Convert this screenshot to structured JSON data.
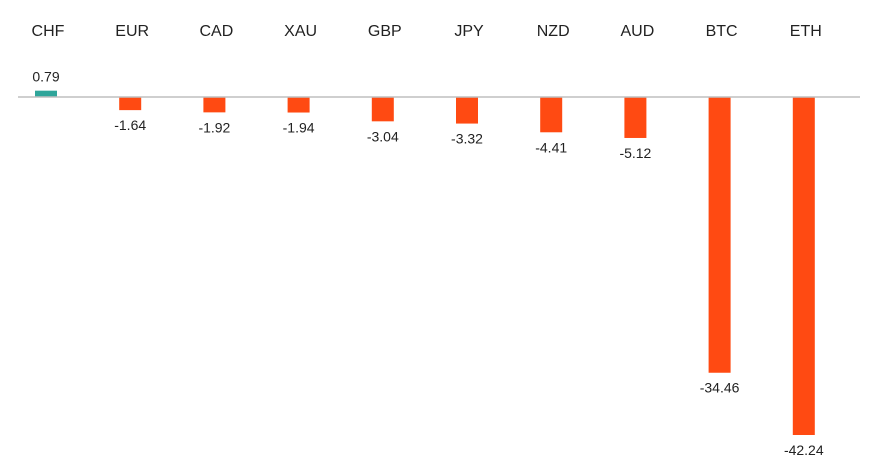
{
  "chart_data": {
    "type": "bar",
    "title": "",
    "xlabel": "",
    "ylabel": "",
    "categories": [
      "CHF",
      "EUR",
      "CAD",
      "XAU",
      "GBP",
      "JPY",
      "NZD",
      "AUD",
      "BTC",
      "ETH"
    ],
    "values": [
      0.79,
      -1.64,
      -1.92,
      -1.94,
      -3.04,
      -3.32,
      -4.41,
      -5.12,
      -34.46,
      -42.24
    ],
    "value_labels": [
      "0.79",
      "-1.64",
      "-1.92",
      "-1.94",
      "-3.04",
      "-3.32",
      "-4.41",
      "-5.12",
      "-34.46",
      "-42.24"
    ],
    "ylim": [
      -42.24,
      0.79
    ],
    "category_axis_position": "top",
    "grid": false,
    "legend": false,
    "colors": {
      "positive": "#2EA59A",
      "negative": "#FF4A12",
      "axis": "#BFBFBF",
      "text": "#222222"
    }
  }
}
